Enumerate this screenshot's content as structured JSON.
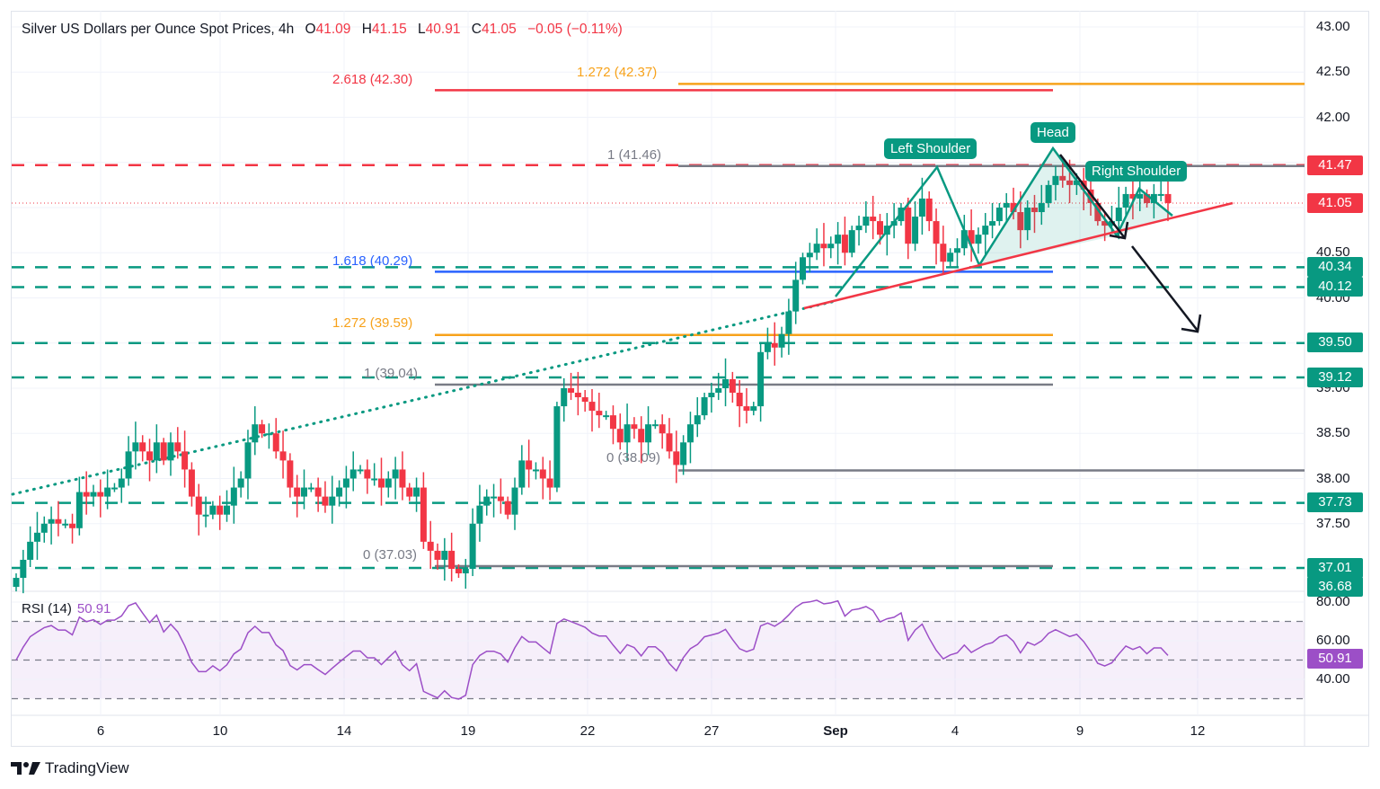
{
  "header": {
    "title": "Silver US Dollars per Ounce Spot Prices, 4h",
    "open_label": "O",
    "open": "41.09",
    "high_label": "H",
    "high": "41.15",
    "low_label": "L",
    "low": "40.91",
    "close_label": "C",
    "close": "41.05",
    "change": "−0.05 (−0.11%)"
  },
  "rsi": {
    "label": "RSI (14)",
    "value": "50.91",
    "axis": [
      "80.00",
      "60.00",
      "40.00"
    ]
  },
  "price_axis": [
    "43.00",
    "42.50",
    "42.00",
    "40.50",
    "40.00",
    "39.00",
    "38.50",
    "38.00",
    "37.50"
  ],
  "price_tags": [
    {
      "value": "41.47",
      "color": "#f23645"
    },
    {
      "value": "41.05",
      "color": "#f23645"
    },
    {
      "value": "40.34",
      "color": "#089981"
    },
    {
      "value": "40.12",
      "color": "#089981"
    },
    {
      "value": "39.50",
      "color": "#089981"
    },
    {
      "value": "39.12",
      "color": "#089981"
    },
    {
      "value": "37.73",
      "color": "#089981"
    },
    {
      "value": "37.01",
      "color": "#089981"
    },
    {
      "value": "36.68",
      "color": "#089981"
    }
  ],
  "fib_labels": [
    {
      "text": "2.618 (42.30)",
      "color": "#f23645"
    },
    {
      "text": "1.272 (42.37)",
      "color": "#f7a21b"
    },
    {
      "text": "1 (41.46)",
      "color": "#787b86"
    },
    {
      "text": "1.618 (40.29)",
      "color": "#2962ff"
    },
    {
      "text": "1.272 (39.59)",
      "color": "#f7a21b"
    },
    {
      "text": "1 (39.04)",
      "color": "#787b86"
    },
    {
      "text": "0 (38.09)",
      "color": "#787b86"
    },
    {
      "text": "0 (37.03)",
      "color": "#787b86"
    }
  ],
  "pattern_labels": {
    "left_shoulder": "Left Shoulder",
    "head": "Head",
    "right_shoulder": "Right Shoulder"
  },
  "x_axis": [
    "6",
    "10",
    "14",
    "19",
    "22",
    "27",
    "Sep",
    "4",
    "9",
    "12"
  ],
  "brand": "TradingView",
  "colors": {
    "up": "#089981",
    "down": "#f23645",
    "rsi": "#9c4fc7",
    "fib_orange": "#f7a21b",
    "fib_blue": "#2962ff",
    "grey": "#787b86"
  },
  "chart_data": {
    "type": "candlestick",
    "title": "Silver US Dollars per Ounce Spot Prices, 4h",
    "xlabel": "",
    "ylabel": "USD per ounce",
    "ylim": [
      36.6,
      43.0
    ],
    "x_ticks": [
      "6",
      "10",
      "14",
      "19",
      "22",
      "27",
      "Sep",
      "4",
      "9",
      "12"
    ],
    "last": {
      "open": 41.09,
      "high": 41.15,
      "low": 40.91,
      "close": 41.05,
      "change": -0.05,
      "change_pct": -0.11
    },
    "horizontal_levels": [
      41.47,
      40.34,
      40.12,
      39.5,
      39.12,
      37.73,
      37.01
    ],
    "fibonacci": [
      {
        "ratio": 2.618,
        "price": 42.3
      },
      {
        "ratio": 1.272,
        "price": 42.37
      },
      {
        "ratio": 1,
        "price": 41.46
      },
      {
        "ratio": 1.618,
        "price": 40.29
      },
      {
        "ratio": 1.272,
        "price": 39.59
      },
      {
        "ratio": 1,
        "price": 39.04
      },
      {
        "ratio": 0,
        "price": 38.09
      },
      {
        "ratio": 0,
        "price": 37.03
      }
    ],
    "pattern": "Head and Shoulders",
    "closes_approx": [
      36.9,
      37.1,
      37.3,
      37.4,
      37.5,
      37.55,
      37.5,
      37.5,
      37.45,
      37.85,
      37.8,
      37.85,
      37.8,
      37.9,
      37.9,
      38.0,
      38.3,
      38.4,
      38.3,
      38.2,
      38.4,
      38.2,
      38.4,
      38.3,
      38.1,
      37.8,
      37.6,
      37.6,
      37.7,
      37.6,
      37.7,
      37.9,
      38.0,
      38.4,
      38.6,
      38.5,
      38.5,
      38.3,
      38.2,
      37.9,
      37.8,
      37.9,
      37.9,
      37.8,
      37.7,
      37.8,
      37.9,
      38.0,
      38.1,
      38.1,
      38.0,
      38.0,
      37.9,
      38.0,
      38.1,
      37.9,
      37.8,
      37.9,
      37.3,
      37.2,
      37.1,
      37.2,
      37.0,
      36.95,
      37.0,
      37.5,
      37.7,
      37.8,
      37.8,
      37.75,
      37.6,
      37.9,
      38.2,
      38.1,
      38.1,
      38.0,
      37.9,
      38.8,
      39.0,
      38.95,
      38.9,
      38.85,
      38.75,
      38.7,
      38.7,
      38.55,
      38.4,
      38.6,
      38.55,
      38.4,
      38.6,
      38.6,
      38.5,
      38.3,
      38.15,
      38.4,
      38.6,
      38.7,
      38.9,
      38.95,
      39.0,
      39.1,
      38.95,
      38.8,
      38.75,
      38.8,
      39.4,
      39.5,
      39.45,
      39.6,
      39.85,
      40.2,
      40.45,
      40.5,
      40.6,
      40.55,
      40.6,
      40.7,
      40.5,
      40.75,
      40.8,
      40.9,
      40.85,
      40.7,
      40.8,
      40.85,
      41.0,
      40.6,
      40.9,
      41.1,
      40.85,
      40.6,
      40.4,
      40.5,
      40.55,
      40.75,
      40.6,
      40.7,
      40.8,
      40.85,
      41.0,
      41.05,
      40.95,
      40.75,
      41.0,
      40.95,
      41.05,
      41.25,
      41.35,
      41.3,
      41.25,
      41.3,
      41.2,
      41.05,
      40.85,
      40.8,
      40.85,
      41.0,
      41.15,
      41.1,
      41.15,
      41.05,
      41.15,
      41.15,
      41.05
    ]
  }
}
